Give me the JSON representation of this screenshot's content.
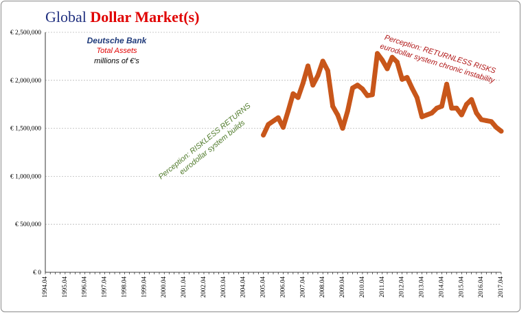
{
  "title": {
    "part1": "Global",
    "part2": "Dollar Market(s)"
  },
  "legend": {
    "bank": "Deutsche Bank",
    "measure": "Total Assets",
    "units": "millions of €'s"
  },
  "annotations": {
    "green_line1": "Perception: RISKLESS RETURNS",
    "green_line2": "eurodollar  system builds",
    "red_line1": "Perception: RETURNLESS RISKS",
    "red_line2": "eurodollar  system chronic instability"
  },
  "colors": {
    "series": "#c8561a",
    "title_blue": "#1f2f7f",
    "title_red": "#e00000",
    "annotation_green": "#4f7a2a",
    "annotation_red": "#b01515",
    "grid": "#b8b8b8"
  },
  "chart_data": {
    "type": "line",
    "title": "Global Dollar Market(s)",
    "ylim": [
      0,
      2500000
    ],
    "yticks": [
      0,
      500000,
      1000000,
      1500000,
      2000000,
      2500000
    ],
    "ytick_labels": [
      "€ 0",
      "€ 500,000",
      "€ 1,000,000",
      "€ 1,500,000",
      "€ 2,000,000",
      "€ 2,500,000"
    ],
    "x_categories": [
      "1994.04",
      "1995.04",
      "1996.04",
      "1997.04",
      "1998.04",
      "1999.04",
      "2000.04",
      "2001.04",
      "2002.04",
      "2003.04",
      "2004.04",
      "2005.04",
      "2006.04",
      "2007.04",
      "2008.04",
      "2009.04",
      "2010.04",
      "2011.04",
      "2012.04",
      "2013.04",
      "2014.04",
      "2015.04",
      "2016.04",
      "2017.04"
    ],
    "xlim": [
      1994.25,
      2017.25
    ],
    "grid": "horizontal dashed",
    "series": [
      {
        "name": "Deutsche Bank Total Assets",
        "x": [
          2005.25,
          2005.5,
          2006.0,
          2006.25,
          2006.5,
          2006.75,
          2007.0,
          2007.25,
          2007.5,
          2007.75,
          2008.0,
          2008.25,
          2008.5,
          2008.75,
          2009.0,
          2009.25,
          2009.5,
          2009.75,
          2010.0,
          2010.25,
          2010.5,
          2010.75,
          2011.0,
          2011.25,
          2011.5,
          2011.75,
          2012.0,
          2012.25,
          2012.5,
          2012.75,
          2013.0,
          2013.25,
          2013.5,
          2013.75,
          2014.0,
          2014.25,
          2014.5,
          2014.75,
          2015.0,
          2015.25,
          2015.5,
          2015.75,
          2016.0,
          2016.25,
          2016.5,
          2016.75,
          2017.0,
          2017.25
        ],
        "y": [
          1430000,
          1540000,
          1610000,
          1510000,
          1680000,
          1860000,
          1820000,
          1970000,
          2150000,
          1950000,
          2050000,
          2200000,
          2100000,
          1730000,
          1640000,
          1500000,
          1680000,
          1920000,
          1950000,
          1910000,
          1840000,
          1850000,
          2280000,
          2210000,
          2120000,
          2240000,
          2190000,
          2010000,
          2030000,
          1920000,
          1820000,
          1620000,
          1640000,
          1660000,
          1710000,
          1730000,
          1960000,
          1710000,
          1710000,
          1640000,
          1750000,
          1800000,
          1660000,
          1590000,
          1580000,
          1570000,
          1510000,
          1470000
        ]
      }
    ]
  }
}
